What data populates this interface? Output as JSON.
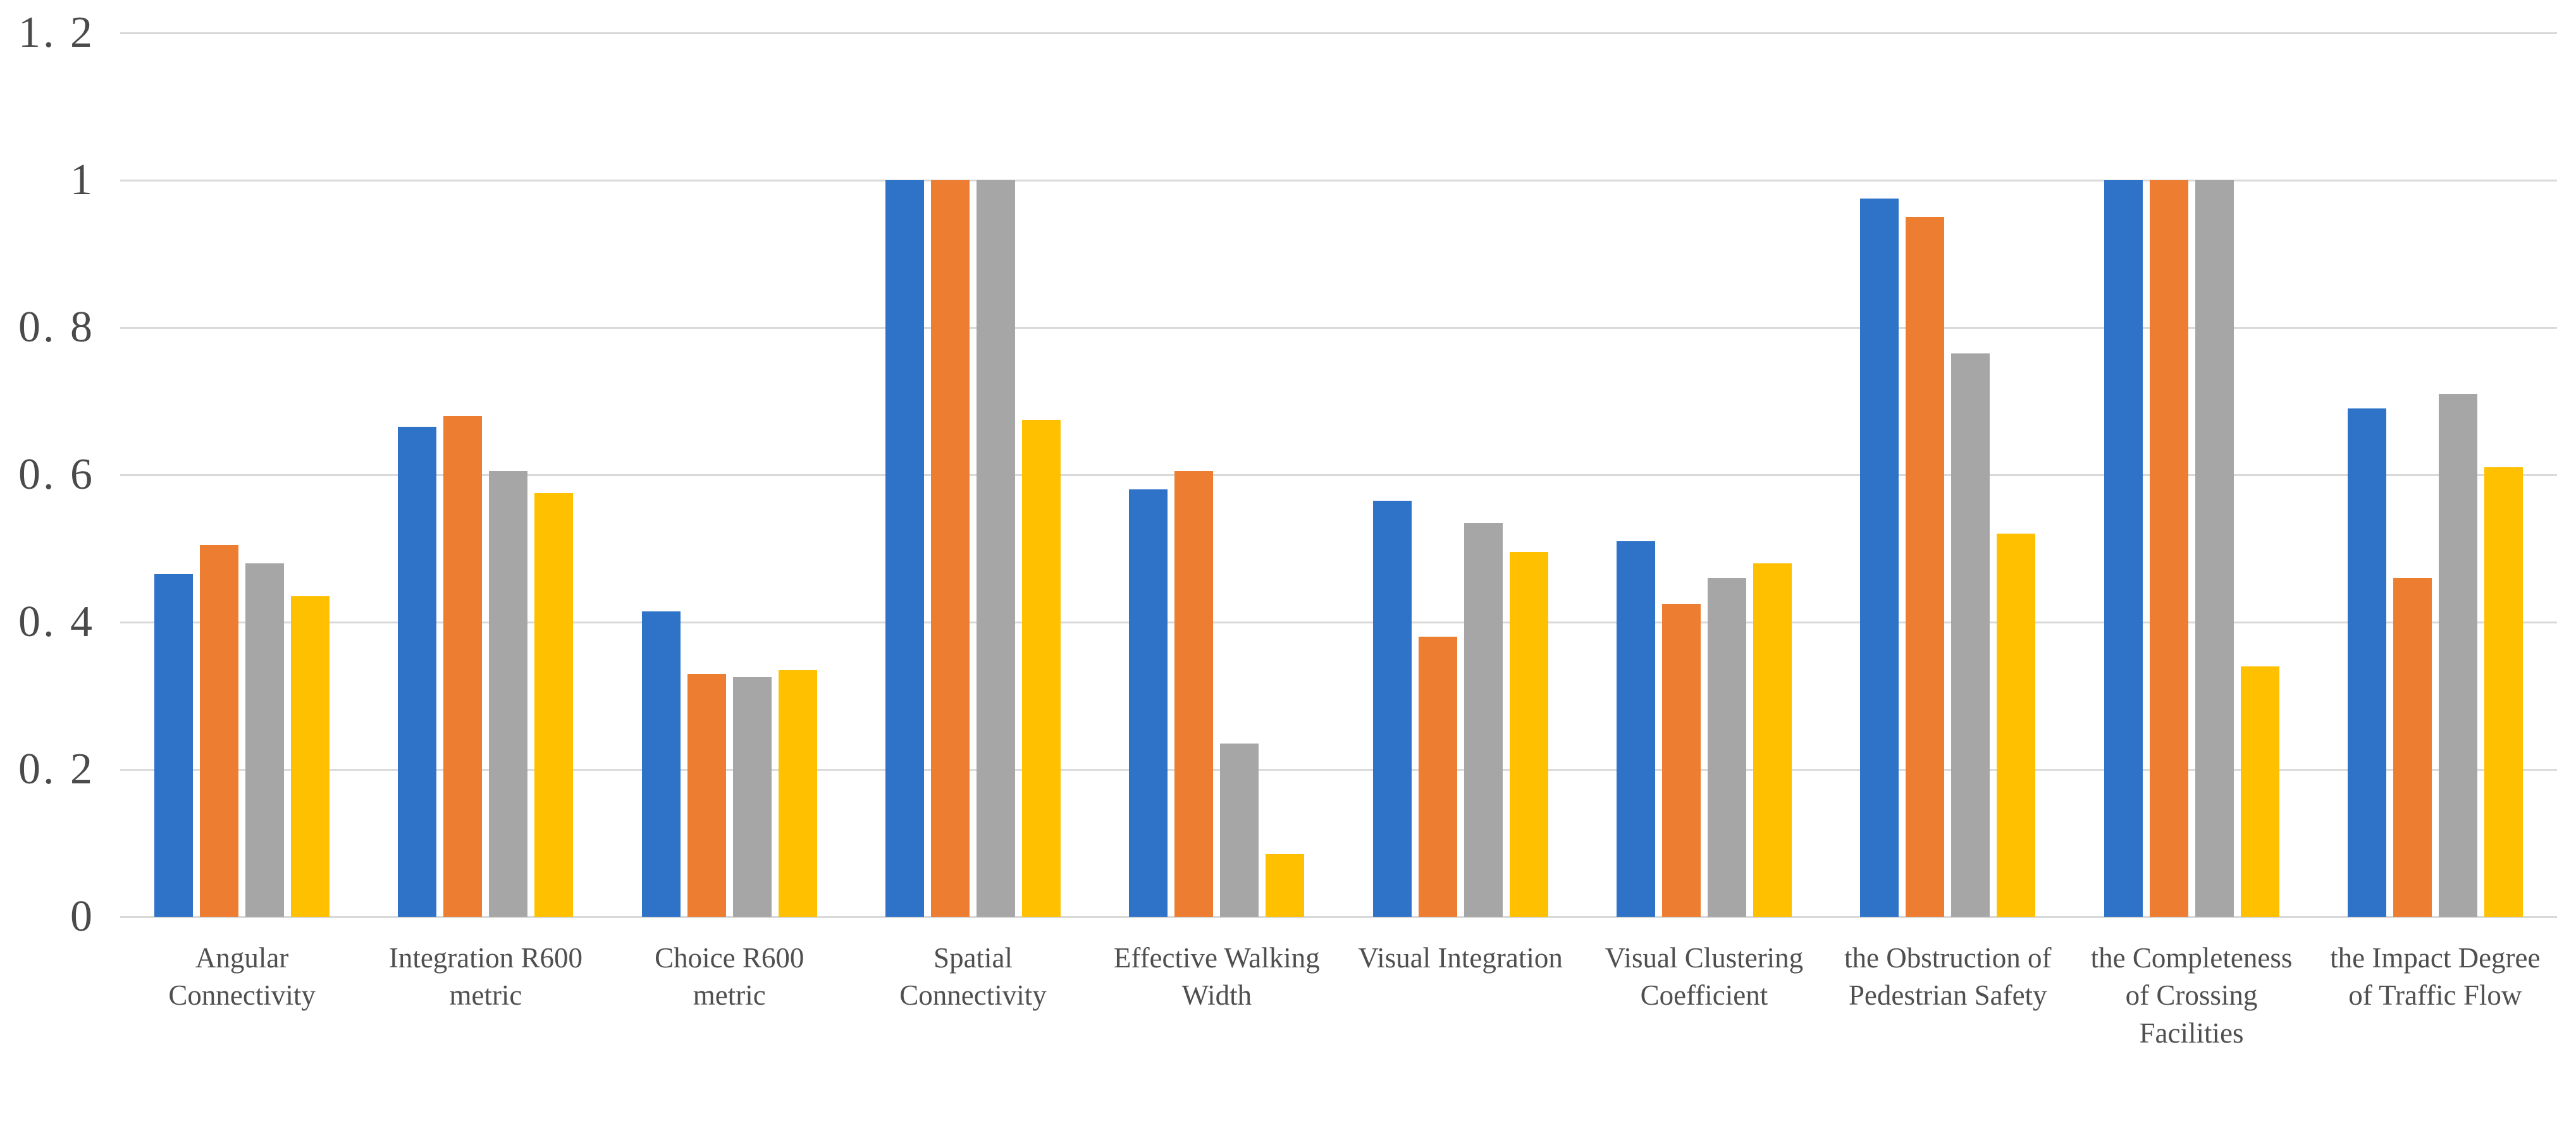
{
  "chart_data": {
    "type": "bar",
    "title": "",
    "xlabel": "",
    "ylabel": "",
    "ylim": [
      0,
      1.2
    ],
    "grid": true,
    "legend_position": "none",
    "gridline_color": "#d9d9d9",
    "axis_text_color": "#4a4a4a",
    "category_text_color": "#4f4f4f",
    "y_ticks": [
      {
        "value": 0,
        "label": "0"
      },
      {
        "value": 0.2,
        "label": "0. 2"
      },
      {
        "value": 0.4,
        "label": "0. 4"
      },
      {
        "value": 0.6,
        "label": "0. 6"
      },
      {
        "value": 0.8,
        "label": "0. 8"
      },
      {
        "value": 1,
        "label": "1"
      },
      {
        "value": 1.2,
        "label": "1. 2"
      }
    ],
    "categories": [
      "Angular Connectivity",
      "Integration R600 metric",
      "Choice R600 metric",
      "Spatial Connectivity",
      "Effective Walking Width",
      "Visual Integration",
      "Visual Clustering Coefficient",
      "the Obstruction of Pedestrian Safety",
      "the Completeness of Crossing Facilities",
      "the Impact Degree of Traffic Flow"
    ],
    "series": [
      {
        "name": "blue",
        "color": "#2e73c8",
        "values": [
          0.465,
          0.665,
          0.415,
          1.0,
          0.58,
          0.565,
          0.51,
          0.975,
          1.0,
          0.69
        ]
      },
      {
        "name": "orange",
        "color": "#ed7d31",
        "values": [
          0.505,
          0.68,
          0.33,
          1.0,
          0.605,
          0.38,
          0.425,
          0.95,
          1.0,
          0.46
        ]
      },
      {
        "name": "gray",
        "color": "#a6a6a6",
        "values": [
          0.48,
          0.605,
          0.325,
          1.0,
          0.235,
          0.535,
          0.46,
          0.765,
          1.0,
          0.71
        ]
      },
      {
        "name": "yellow",
        "color": "#ffc000",
        "values": [
          0.435,
          0.575,
          0.335,
          0.675,
          0.085,
          0.495,
          0.48,
          0.52,
          0.34,
          0.61
        ]
      }
    ]
  }
}
